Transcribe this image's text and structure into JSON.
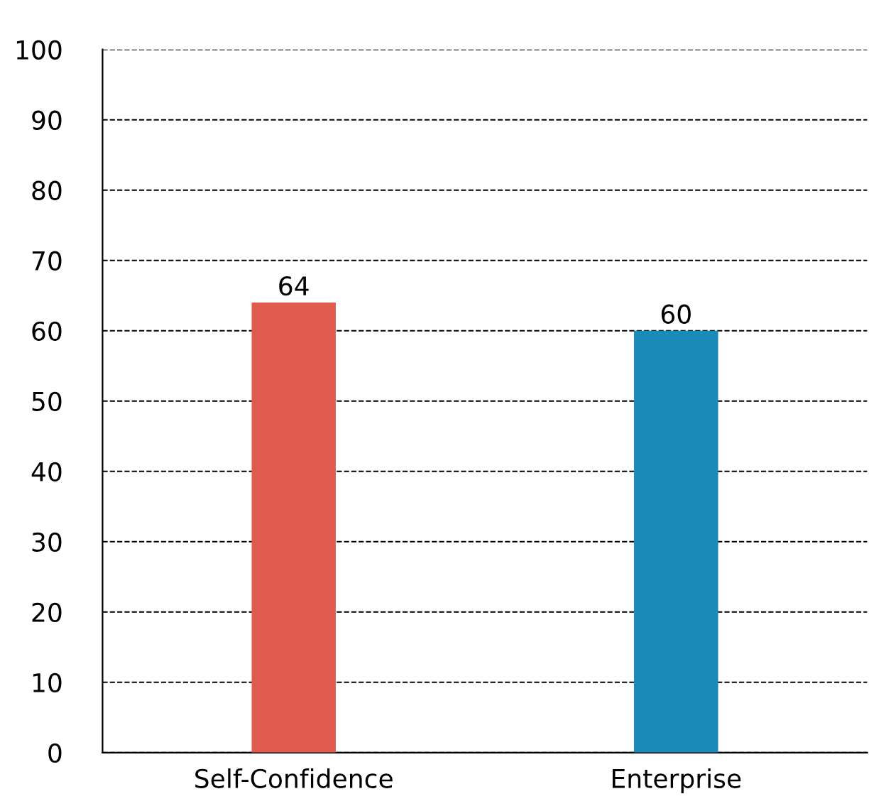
{
  "chart_data": {
    "type": "bar",
    "categories": [
      "Self-Confidence",
      "Enterprise"
    ],
    "values": [
      64,
      60
    ],
    "colors": [
      "#e05a4e",
      "#1a8ab8"
    ],
    "ylim": [
      0,
      100
    ],
    "yticks": [
      0,
      10,
      20,
      30,
      40,
      50,
      60,
      70,
      80,
      90,
      100
    ],
    "grid": "y",
    "line_style": "dashed",
    "data_labels": true
  }
}
